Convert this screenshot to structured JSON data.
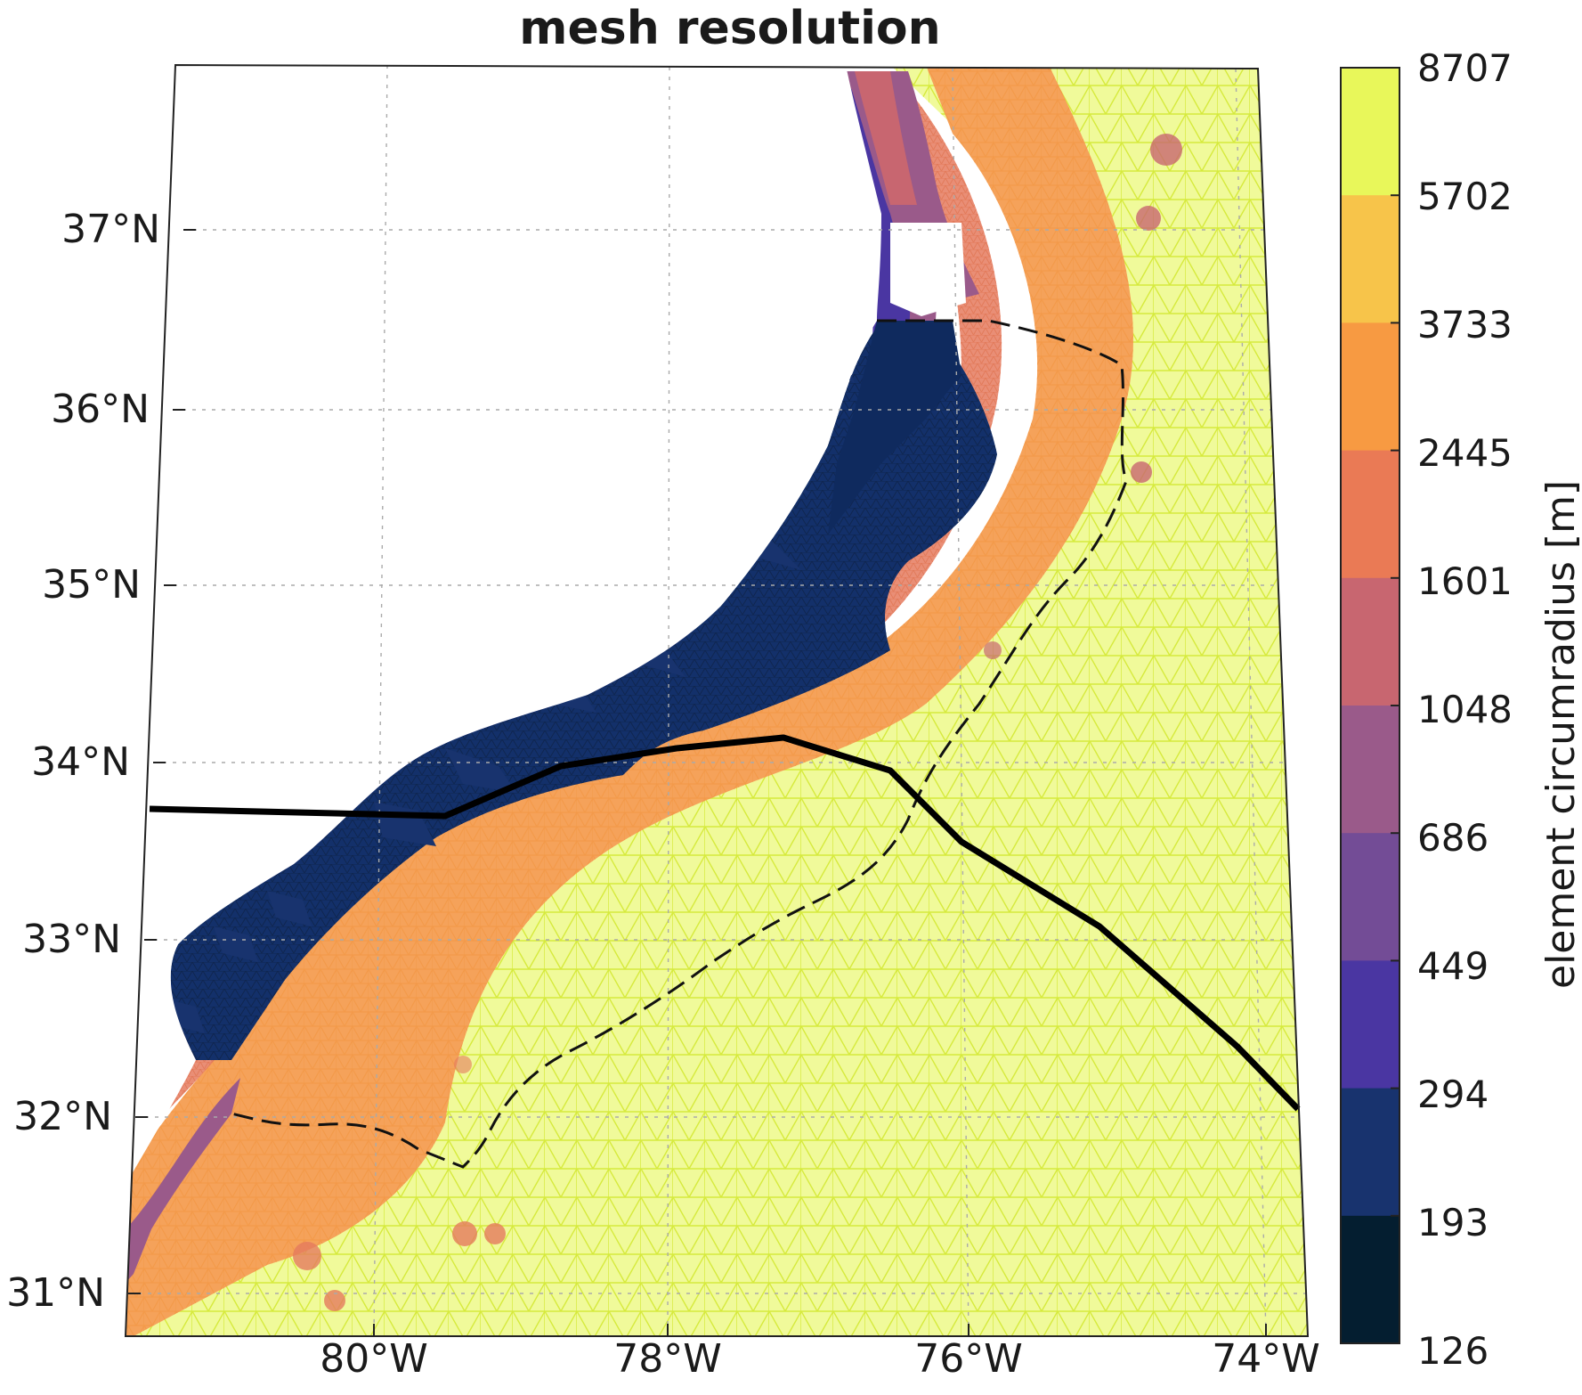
{
  "title": "mesh resolution",
  "map": {
    "lat_ticks": [
      "37°N",
      "36°N",
      "35°N",
      "34°N",
      "33°N",
      "32°N",
      "31°N"
    ],
    "lon_ticks": [
      "80°W",
      "78°W",
      "76°W",
      "74°W"
    ],
    "grid": true
  },
  "colorbar": {
    "label": "element circumradius [m]",
    "ticks": [
      "8707",
      "5702",
      "3733",
      "2445",
      "1601",
      "1048",
      "686",
      "449",
      "294",
      "193",
      "126"
    ],
    "colors": [
      "#e8f75a",
      "#f7c44a",
      "#f79a42",
      "#ea7a55",
      "#c86670",
      "#9a5a8a",
      "#734c96",
      "#4a36a2",
      "#18336e",
      "#041e30"
    ]
  }
}
